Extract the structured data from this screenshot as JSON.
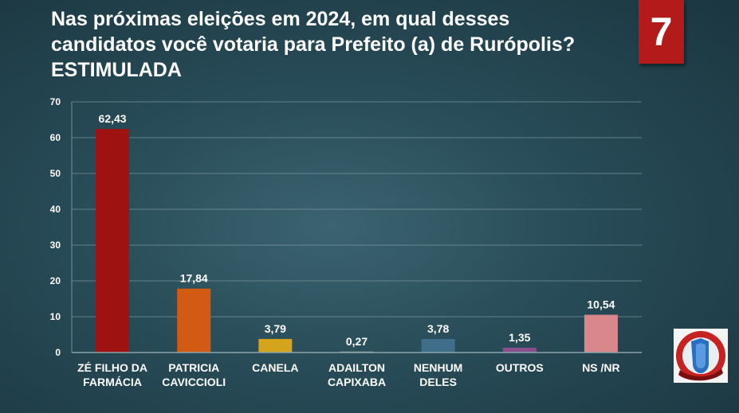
{
  "header": {
    "title_lines": [
      "Nas próximas eleições em 2024, em qual desses",
      "candidatos você votaria para Prefeito (a) de Rurópolis?",
      "ESTIMULADA"
    ],
    "page_number": "7"
  },
  "colors": {
    "background": "#274b57",
    "badge": "#b31b1b",
    "grid": "#8aa3ab"
  },
  "chart_data": {
    "type": "bar",
    "categories": [
      [
        "ZÉ FILHO DA",
        "FARMÁCIA"
      ],
      [
        "PATRICIA",
        "CAVICCIOLI"
      ],
      [
        "CANELA"
      ],
      [
        "ADAILTON",
        "CAPIXABA"
      ],
      [
        "NENHUM",
        "DELES"
      ],
      [
        "OUTROS"
      ],
      [
        "NS /NR"
      ]
    ],
    "values": [
      62.43,
      17.84,
      3.79,
      0.27,
      3.78,
      1.35,
      10.54
    ],
    "value_labels": [
      "62,43",
      "17,84",
      "3,79",
      "0,27",
      "3,78",
      "1,35",
      "10,54"
    ],
    "bar_colors": [
      "#9e1212",
      "#d35a12",
      "#d4a41c",
      "#9aa3a6",
      "#3f6e8a",
      "#8a4f8f",
      "#d8888a"
    ],
    "ylim": [
      0,
      70
    ],
    "yticks": [
      0,
      10,
      20,
      30,
      40,
      50,
      60,
      70
    ],
    "grid": true,
    "legend": "none"
  }
}
